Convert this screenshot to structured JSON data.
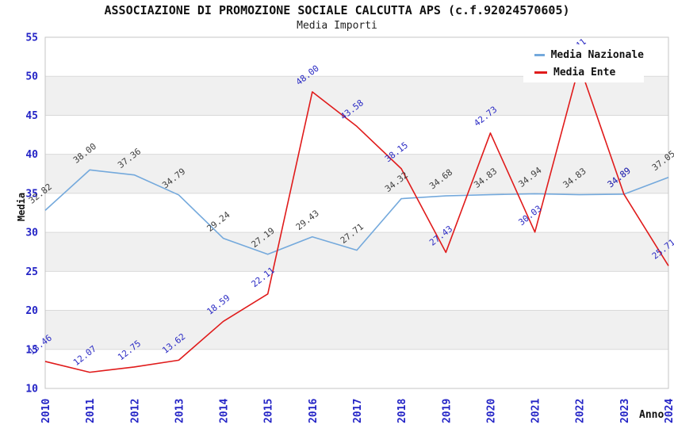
{
  "chart_data": {
    "type": "line",
    "title": "ASSOCIAZIONE DI PROMOZIONE SOCIALE CALCUTTA APS (c.f.92024570605)",
    "subtitle": "Media Importi",
    "xlabel": "Anno",
    "ylabel": "Media",
    "x_years": [
      2010,
      2011,
      2012,
      2013,
      2014,
      2015,
      2016,
      2017,
      2018,
      2019,
      2020,
      2021,
      2022,
      2023,
      2024
    ],
    "ylim": [
      10,
      55
    ],
    "ytick_step": 5,
    "grid": "horizontal-gridlines-with-alternating-bands",
    "legend_position": "top-right",
    "series": [
      {
        "name": "Media Nazionale",
        "color": "#74a9dc",
        "label_color": "#3f3f3f",
        "values": [
          32.82,
          38.0,
          37.36,
          34.79,
          29.24,
          27.19,
          29.43,
          27.71,
          34.32,
          34.68,
          34.83,
          34.94,
          34.83,
          34.89,
          37.05
        ]
      },
      {
        "name": "Media Ente",
        "color": "#e01b1b",
        "label_color": "#2c2cc4",
        "values": [
          13.46,
          12.07,
          12.75,
          13.62,
          18.59,
          22.11,
          48.0,
          43.58,
          38.15,
          27.43,
          42.73,
          30.03,
          51.41,
          34.89,
          25.71
        ]
      }
    ],
    "style": {
      "band_fill": "#f0f0f0",
      "gridline_color": "#d9d9d9",
      "border_color": "#c5c5c5",
      "tick_color": "#2424c6"
    }
  }
}
